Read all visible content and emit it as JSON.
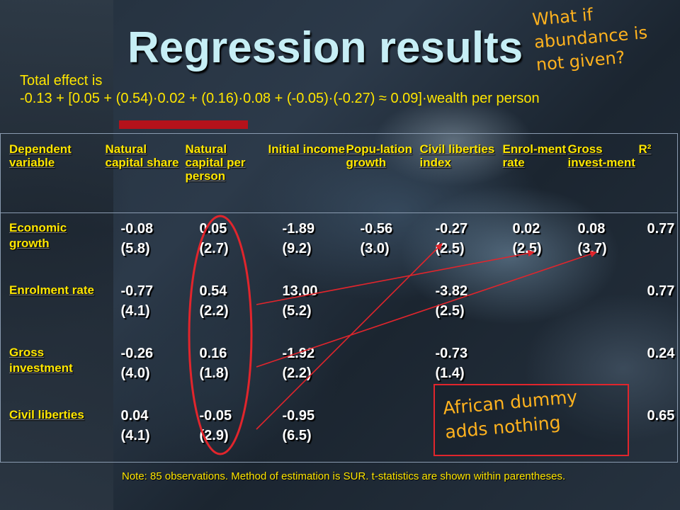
{
  "title": "Regression results",
  "callout": {
    "line1": "What if",
    "line2": "abundance is",
    "line3": "not given?"
  },
  "total_effect": {
    "line1": "Total effect is",
    "line2": "-0.13 + [0.05 + (0.54)·0.02 + (0.16)·0.08 + (-0.05)·(-0.27) ≈ 0.09]·wealth per person"
  },
  "table": {
    "headers": [
      "Dependent variable",
      "Natural capital share",
      "Natural capital per person",
      "Initial income",
      "Popu-lation growth",
      "Civil liberties index",
      "Enrol-ment rate",
      "Gross invest-ment",
      "R²"
    ],
    "rows": [
      {
        "label": "Economic growth",
        "cells": [
          {
            "coef": "-0.08",
            "t": "(5.8)"
          },
          {
            "coef": "0.05",
            "t": "(2.7)"
          },
          {
            "coef": "-1.89",
            "t": "(9.2)"
          },
          {
            "coef": "-0.56",
            "t": "(3.0)"
          },
          {
            "coef": "-0.27",
            "t": "(2.5)"
          },
          {
            "coef": "0.02",
            "t": "(2.5)"
          },
          {
            "coef": "0.08",
            "t": "(3.7)"
          },
          {
            "coef": "0.77",
            "t": ""
          }
        ]
      },
      {
        "label": "Enrolment rate",
        "cells": [
          {
            "coef": "-0.77",
            "t": "(4.1)"
          },
          {
            "coef": "0.54",
            "t": "(2.2)"
          },
          {
            "coef": "13.00",
            "t": "(5.2)"
          },
          {
            "coef": "",
            "t": ""
          },
          {
            "coef": "-3.82",
            "t": "(2.5)"
          },
          {
            "coef": "",
            "t": ""
          },
          {
            "coef": "",
            "t": ""
          },
          {
            "coef": "0.77",
            "t": ""
          }
        ]
      },
      {
        "label": "Gross investment",
        "cells": [
          {
            "coef": "-0.26",
            "t": "(4.0)"
          },
          {
            "coef": "0.16",
            "t": "(1.8)"
          },
          {
            "coef": "-1.92",
            "t": "(2.2)"
          },
          {
            "coef": "",
            "t": ""
          },
          {
            "coef": "-0.73",
            "t": "(1.4)"
          },
          {
            "coef": "",
            "t": ""
          },
          {
            "coef": "",
            "t": ""
          },
          {
            "coef": "0.24",
            "t": ""
          }
        ]
      },
      {
        "label": "Civil liberties",
        "cells": [
          {
            "coef": "0.04",
            "t": "(4.1)"
          },
          {
            "coef": "-0.05",
            "t": "(2.9)"
          },
          {
            "coef": "-0.95",
            "t": "(6.5)"
          },
          {
            "coef": "",
            "t": ""
          },
          {
            "coef": "",
            "t": ""
          },
          {
            "coef": "",
            "t": ""
          },
          {
            "coef": "",
            "t": ""
          },
          {
            "coef": "0.65",
            "t": ""
          }
        ]
      }
    ]
  },
  "african_note": {
    "line1": "African dummy",
    "line2": "adds nothing"
  },
  "footnote": "Note: 85 observations. Method of estimation is SUR. t-statistics are shown within parentheses.",
  "colors": {
    "title": "#c6eef5",
    "yellow": "#ffe600",
    "orange": "#ffb21e",
    "red": "#e1252c"
  }
}
